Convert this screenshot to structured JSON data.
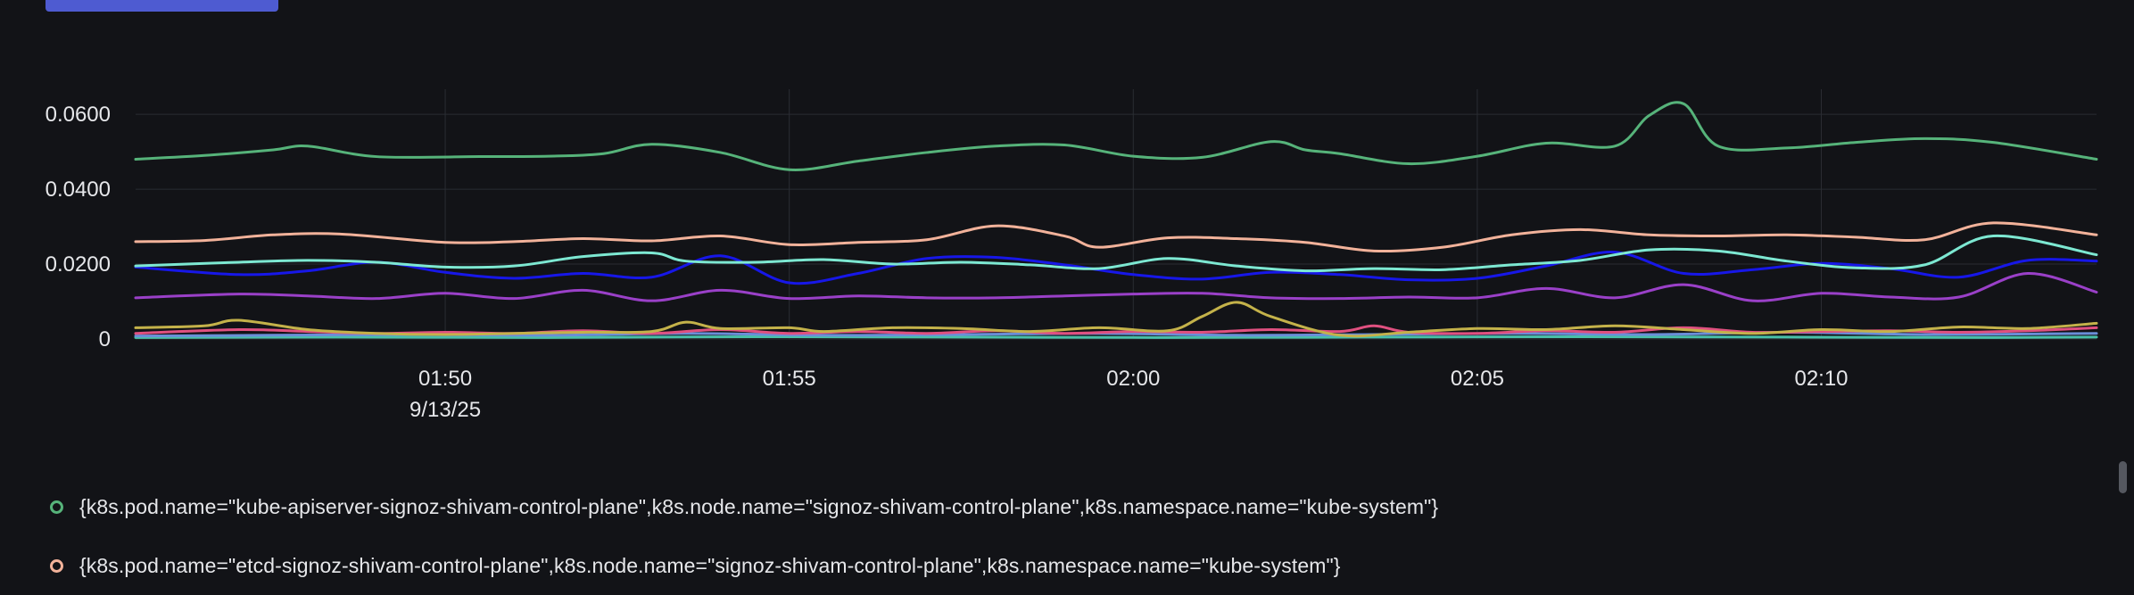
{
  "colors": {
    "background": "#121317",
    "button": "#4e5bd1",
    "grid": "#2a2d33",
    "text": "#e6e7ea"
  },
  "chart_data": {
    "type": "line",
    "x_label_date": "9/13/25",
    "x_ticks": [
      "01:50",
      "01:55",
      "02:00",
      "02:05",
      "02:10"
    ],
    "x_tick_minutes": [
      4.5,
      9.5,
      14.5,
      19.5,
      24.5
    ],
    "xlim": [
      0,
      28.5
    ],
    "y_ticks": [
      "0",
      "0.0200",
      "0.0400",
      "0.0600"
    ],
    "y_tick_values": [
      0,
      0.02,
      0.04,
      0.06
    ],
    "ylim": [
      0,
      0.0667
    ],
    "grid": true,
    "series": [
      {
        "name": "{k8s.pod.name=\"kube-apiserver-signoz-shivam-control-plane\",k8s.node.name=\"signoz-shivam-control-plane\",k8s.namespace.name=\"kube-system\"}",
        "color": "#56b37a",
        "x": [
          0,
          1.0,
          2.0,
          2.5,
          3.5,
          5.0,
          6.0,
          6.8,
          7.5,
          8.5,
          9.5,
          10.5,
          11.5,
          12.5,
          13.5,
          14.5,
          15.5,
          16.5,
          17.0,
          17.5,
          18.5,
          19.5,
          20.5,
          21.5,
          22.0,
          22.5,
          23.0,
          24.0,
          25.0,
          26.0,
          27.0,
          28.5
        ],
        "values": [
          0.048,
          0.049,
          0.0505,
          0.0515,
          0.0487,
          0.0487,
          0.0488,
          0.0495,
          0.052,
          0.0498,
          0.0452,
          0.0475,
          0.0498,
          0.0515,
          0.0518,
          0.0488,
          0.0485,
          0.0527,
          0.0505,
          0.0495,
          0.0468,
          0.0488,
          0.0523,
          0.0515,
          0.0597,
          0.0628,
          0.0515,
          0.051,
          0.0525,
          0.0535,
          0.0525,
          0.048
        ]
      },
      {
        "name": "{k8s.pod.name=\"etcd-signoz-shivam-control-plane\",k8s.node.name=\"signoz-shivam-control-plane\",k8s.namespace.name=\"kube-system\"}",
        "color": "#f2b29a",
        "x": [
          0,
          1.0,
          2.0,
          3.0,
          4.5,
          5.5,
          6.5,
          7.5,
          8.5,
          9.5,
          10.5,
          11.5,
          12.5,
          13.5,
          14.0,
          15.0,
          16.0,
          17.0,
          18.0,
          19.0,
          20.0,
          21.0,
          22.0,
          23.0,
          24.0,
          25.0,
          26.0,
          27.0,
          28.5
        ],
        "values": [
          0.026,
          0.0263,
          0.0278,
          0.028,
          0.0258,
          0.026,
          0.0268,
          0.0262,
          0.0275,
          0.0252,
          0.0258,
          0.0265,
          0.0302,
          0.0275,
          0.0245,
          0.027,
          0.0268,
          0.0258,
          0.0235,
          0.0245,
          0.0278,
          0.0292,
          0.0278,
          0.0275,
          0.0278,
          0.0272,
          0.0265,
          0.031,
          0.0278
        ]
      },
      {
        "name": "",
        "color": "#7de8d2",
        "x": [
          0,
          1.5,
          2.5,
          3.5,
          4.5,
          5.5,
          6.5,
          7.5,
          8.0,
          9.0,
          10.0,
          11.0,
          12.0,
          13.0,
          14.0,
          15.0,
          16.0,
          17.0,
          18.0,
          19.0,
          20.0,
          21.0,
          22.0,
          23.0,
          24.0,
          25.0,
          26.0,
          27.0,
          28.5
        ],
        "values": [
          0.0195,
          0.0205,
          0.021,
          0.0205,
          0.0192,
          0.0195,
          0.022,
          0.023,
          0.0208,
          0.0205,
          0.0212,
          0.02,
          0.0205,
          0.0198,
          0.0188,
          0.0215,
          0.0195,
          0.0182,
          0.0188,
          0.0185,
          0.0198,
          0.021,
          0.0238,
          0.0235,
          0.0208,
          0.019,
          0.0198,
          0.0275,
          0.0225
        ]
      },
      {
        "name": "",
        "color": "#1717e8",
        "x": [
          0,
          1.5,
          2.5,
          3.5,
          4.5,
          5.5,
          6.5,
          7.5,
          8.5,
          9.5,
          10.5,
          11.5,
          12.5,
          13.5,
          14.5,
          15.5,
          16.5,
          17.5,
          18.5,
          19.5,
          20.5,
          21.5,
          22.5,
          23.5,
          24.5,
          25.5,
          26.5,
          27.5,
          28.5
        ],
        "values": [
          0.0192,
          0.0172,
          0.0182,
          0.0205,
          0.0178,
          0.0162,
          0.0175,
          0.0165,
          0.0222,
          0.015,
          0.0175,
          0.0215,
          0.0218,
          0.0198,
          0.0172,
          0.016,
          0.0178,
          0.0172,
          0.0158,
          0.0162,
          0.0195,
          0.0232,
          0.0175,
          0.0185,
          0.0202,
          0.0188,
          0.0165,
          0.021,
          0.0208
        ]
      },
      {
        "name": "",
        "color": "#9a40c8",
        "x": [
          0,
          1.5,
          2.5,
          3.5,
          4.5,
          5.5,
          6.5,
          7.5,
          8.5,
          9.5,
          10.5,
          11.5,
          12.5,
          13.5,
          14.5,
          15.5,
          16.5,
          17.5,
          18.5,
          19.5,
          20.5,
          21.5,
          22.5,
          23.5,
          24.5,
          25.5,
          26.5,
          27.5,
          28.5
        ],
        "values": [
          0.011,
          0.012,
          0.0115,
          0.0108,
          0.0122,
          0.0108,
          0.013,
          0.0102,
          0.013,
          0.0108,
          0.0115,
          0.011,
          0.011,
          0.0115,
          0.012,
          0.0122,
          0.011,
          0.0108,
          0.0112,
          0.011,
          0.0135,
          0.011,
          0.0145,
          0.0102,
          0.0122,
          0.0112,
          0.0112,
          0.0175,
          0.0125
        ]
      },
      {
        "name": "",
        "color": "#c4b24a",
        "x": [
          0,
          1.0,
          1.5,
          2.5,
          3.5,
          4.5,
          5.5,
          6.5,
          7.5,
          8.0,
          8.5,
          9.5,
          10.0,
          11.0,
          12.0,
          13.0,
          14.0,
          15.0,
          15.5,
          16.0,
          16.5,
          17.5,
          18.5,
          19.5,
          20.5,
          21.5,
          22.5,
          23.5,
          24.5,
          25.5,
          26.5,
          27.5,
          28.5
        ],
        "values": [
          0.003,
          0.0035,
          0.005,
          0.0025,
          0.0015,
          0.0012,
          0.0015,
          0.0018,
          0.002,
          0.0045,
          0.0028,
          0.003,
          0.002,
          0.003,
          0.0028,
          0.002,
          0.003,
          0.0022,
          0.006,
          0.0098,
          0.006,
          0.001,
          0.0018,
          0.0028,
          0.0025,
          0.0035,
          0.0025,
          0.0015,
          0.0025,
          0.002,
          0.0032,
          0.0028,
          0.0042
        ]
      },
      {
        "name": "",
        "color": "#e05080",
        "x": [
          0,
          1.5,
          2.5,
          3.5,
          4.5,
          5.5,
          6.5,
          7.5,
          8.5,
          9.5,
          10.5,
          11.5,
          12.5,
          13.5,
          14.5,
          15.5,
          16.5,
          17.5,
          18.0,
          18.5,
          19.5,
          20.5,
          21.5,
          22.5,
          23.5,
          24.5,
          25.5,
          26.5,
          27.5,
          28.5
        ],
        "values": [
          0.0015,
          0.0025,
          0.002,
          0.0015,
          0.0018,
          0.0015,
          0.0022,
          0.0015,
          0.0025,
          0.0015,
          0.002,
          0.0015,
          0.0022,
          0.0015,
          0.002,
          0.0018,
          0.0025,
          0.002,
          0.0035,
          0.0018,
          0.0015,
          0.0022,
          0.0018,
          0.003,
          0.0018,
          0.002,
          0.0022,
          0.0018,
          0.0022,
          0.003
        ]
      },
      {
        "name": "",
        "color": "#6a8ed8",
        "x": [
          0,
          2.0,
          4.0,
          6.0,
          8.0,
          10.0,
          12.0,
          14.0,
          16.0,
          18.0,
          20.0,
          22.0,
          24.0,
          26.0,
          28.5
        ],
        "values": [
          0.0008,
          0.001,
          0.0012,
          0.001,
          0.0015,
          0.001,
          0.0012,
          0.0015,
          0.001,
          0.0012,
          0.0015,
          0.0012,
          0.0018,
          0.0012,
          0.0015
        ]
      },
      {
        "name": "",
        "color": "#48c0a8",
        "x": [
          0,
          3.0,
          6.0,
          9.0,
          12.0,
          15.0,
          18.0,
          21.0,
          24.0,
          27.0,
          28.5
        ],
        "values": [
          0.0004,
          0.0005,
          0.0004,
          0.0006,
          0.0005,
          0.0004,
          0.0005,
          0.0006,
          0.0005,
          0.0004,
          0.0005
        ]
      }
    ]
  },
  "legend": [
    {
      "label": "{k8s.pod.name=\"kube-apiserver-signoz-shivam-control-plane\",k8s.node.name=\"signoz-shivam-control-plane\",k8s.namespace.name=\"kube-system\"}",
      "color": "#56b37a"
    },
    {
      "label": "{k8s.pod.name=\"etcd-signoz-shivam-control-plane\",k8s.node.name=\"signoz-shivam-control-plane\",k8s.namespace.name=\"kube-system\"}",
      "color": "#f2b29a"
    }
  ]
}
